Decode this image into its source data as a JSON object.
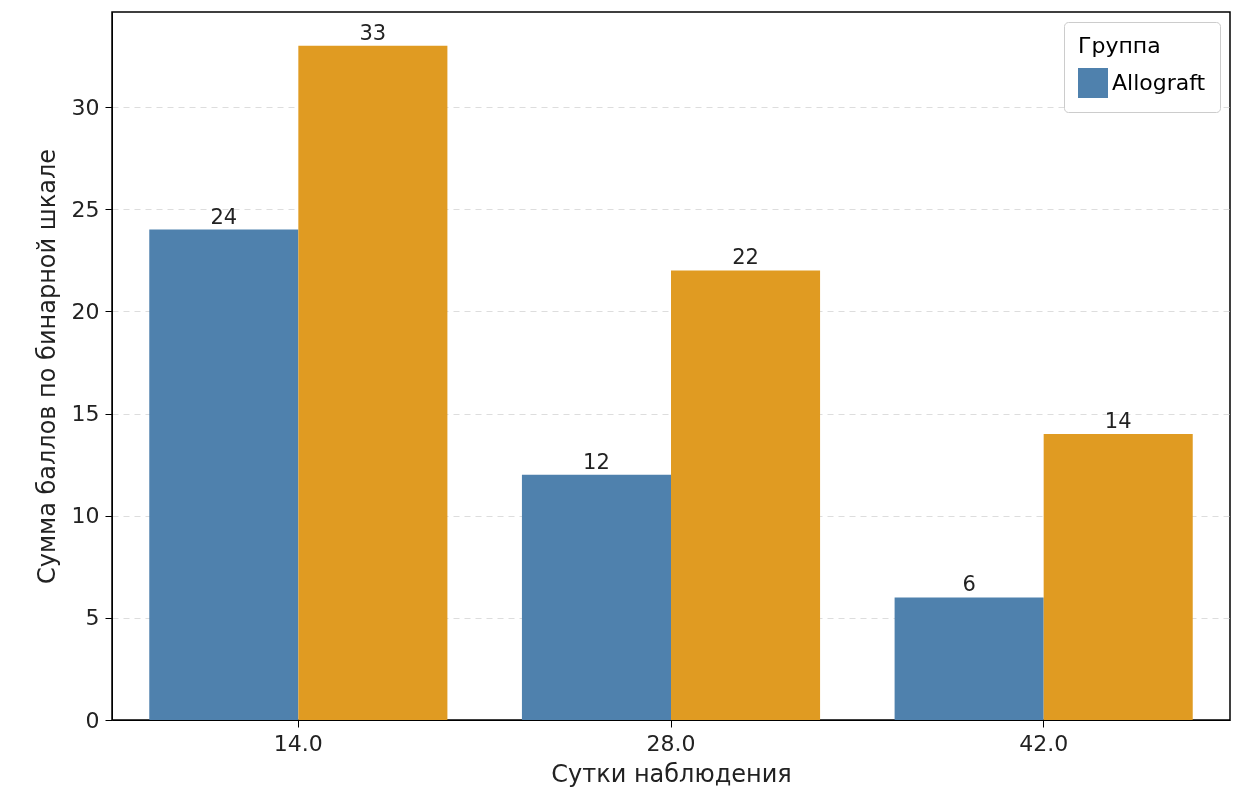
{
  "chart_data": {
    "type": "bar",
    "xlabel": "Сутки наблюдения",
    "ylabel": "Сумма баллов по бинарной шкале",
    "legend_title": "Группа",
    "categories": [
      "14.0",
      "28.0",
      "42.0"
    ],
    "series": [
      {
        "name": "Allograft",
        "color": "#4f81ad",
        "values": [
          24,
          12,
          6
        ]
      },
      {
        "color": "#e09b22",
        "values": [
          33,
          22,
          14
        ]
      }
    ],
    "ylim": [
      0,
      34.65
    ],
    "yticks": [
      0,
      5,
      10,
      15,
      20,
      25,
      30
    ],
    "grid": "y",
    "legend": "top right",
    "data_labels": true
  }
}
